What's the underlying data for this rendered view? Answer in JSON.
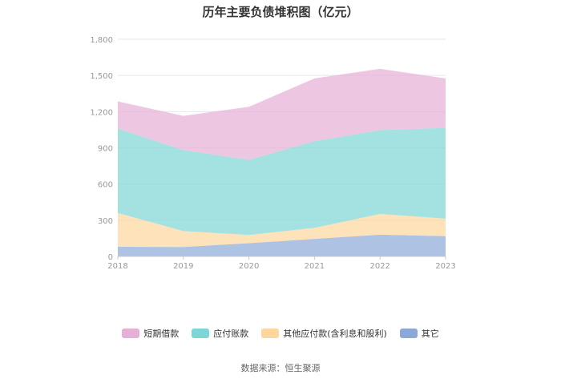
{
  "title": "历年主要负债堆积图（亿元）",
  "source": "数据来源：恒生聚源",
  "chart_data": {
    "type": "area",
    "stacked": true,
    "x": [
      "2018",
      "2019",
      "2020",
      "2021",
      "2022",
      "2023"
    ],
    "ylim": [
      0,
      1800
    ],
    "yticks": [
      "0",
      "300",
      "600",
      "900",
      "1,200",
      "1,500",
      "1,800"
    ],
    "grid": true,
    "legend_position": "bottom",
    "series": [
      {
        "name": "其它",
        "color": "#8ba8d8",
        "values": [
          80,
          78,
          110,
          145,
          180,
          168
        ]
      },
      {
        "name": "其他应付款(含利息和股利)",
        "color": "#fcd69c",
        "values": [
          280,
          132,
          68,
          92,
          172,
          145
        ]
      },
      {
        "name": "应付账款",
        "color": "#7dd6d6",
        "values": [
          700,
          672,
          622,
          718,
          695,
          752
        ]
      },
      {
        "name": "短期借款",
        "color": "#e6afd6",
        "values": [
          225,
          283,
          440,
          520,
          508,
          410
        ]
      }
    ],
    "legend_order": [
      "短期借款",
      "应付账款",
      "其他应付款(含利息和股利)",
      "其它"
    ]
  }
}
